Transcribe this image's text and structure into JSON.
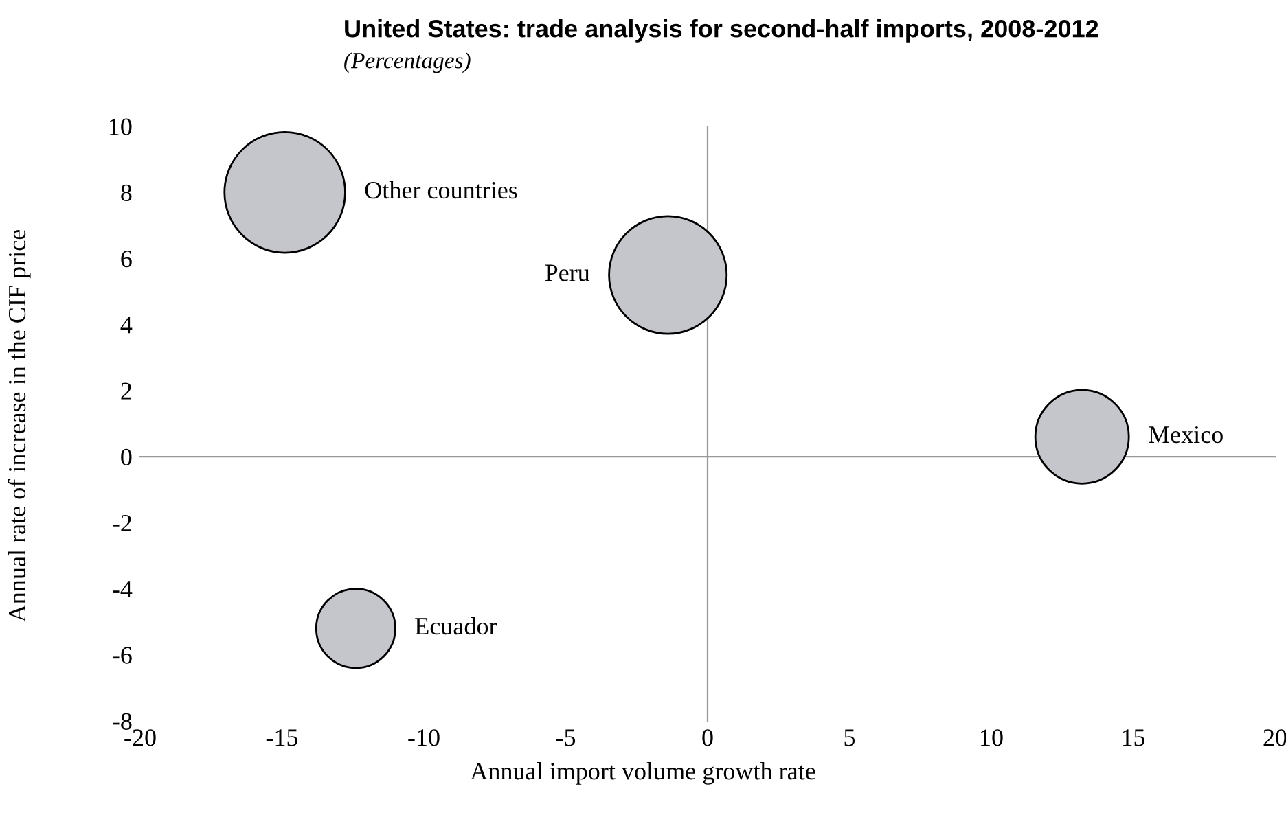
{
  "chart_data": {
    "type": "bubble",
    "title": "United States: trade analysis for second-half imports, 2008-2012",
    "subtitle": "(Percentages)",
    "xlabel": "Annual import volume growth rate",
    "ylabel": "Annual rate of increase in the CIF price",
    "series": [
      {
        "name": "Other countries",
        "color": "#c4c6cb",
        "x": [
          -14.9
        ],
        "values": [
          8.0
        ],
        "sizes": [
          1
        ]
      },
      {
        "name": "Peru",
        "color": "#c4c6cb",
        "x": [
          -1.4
        ],
        "values": [
          5.5
        ],
        "sizes": [
          0.95
        ]
      },
      {
        "name": "Mexico",
        "color": "#c4c6cb",
        "x": [
          13.2
        ],
        "values": [
          0.6
        ],
        "sizes": [
          0.6
        ]
      },
      {
        "name": "Ecuador",
        "color": "#c4c6cb",
        "x": [
          -12.4
        ],
        "values": [
          -5.2
        ],
        "sizes": [
          0.43
        ]
      }
    ],
    "xlim": [
      -20,
      20
    ],
    "ylim": [
      -8,
      10
    ],
    "xticks": [
      {
        "value": -20,
        "label": "-20"
      },
      {
        "value": -15,
        "label": "-15"
      },
      {
        "value": -10,
        "label": "-10"
      },
      {
        "value": -5,
        "label": "-5"
      },
      0,
      5,
      10,
      15,
      20
    ],
    "yticks": [
      {
        "value": -8,
        "label": "-8"
      },
      {
        "value": -6,
        "label": "-6"
      },
      {
        "value": -4,
        "label": "-4"
      },
      {
        "value": -2,
        "label": "-2"
      },
      0,
      2,
      4,
      6,
      8,
      10
    ]
  }
}
